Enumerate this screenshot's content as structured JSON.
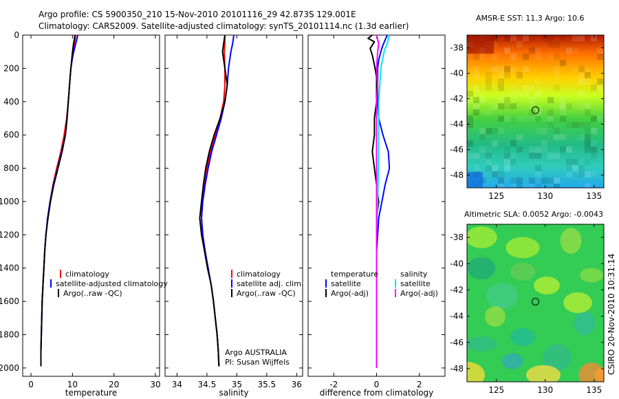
{
  "title": {
    "line1": "Argo profile: CS 5900350_210 15-Nov-2010 20101116_29 42.873S 129.001E",
    "line2": "Climatology: CARS2009. Satellite-adjusted climatology: synTS_20101114.nc (1.3d earlier)"
  },
  "side_label": "CSIRO 20-Nov-2010 10:31:14",
  "colors": {
    "climatology": "#ff0000",
    "satellite": "#0000ff",
    "argo": "#000000",
    "cyan": "#00e5ee",
    "magenta": "#ff00ff"
  },
  "chart_data": [
    {
      "id": "temperature",
      "type": "line",
      "xlabel": "temperature",
      "xlim": [
        -2,
        31
      ],
      "xticks": [
        0,
        10,
        20,
        30
      ],
      "ylim": [
        2050,
        0
      ],
      "yticks": [
        0,
        200,
        400,
        600,
        800,
        1000,
        1200,
        1400,
        1600,
        1800,
        2000
      ],
      "legend": [
        "climatology",
        "satellite-adjusted climatology",
        "Argo(..raw -QC)"
      ],
      "series": [
        {
          "name": "climatology",
          "color": "#ff0000",
          "points": [
            [
              10.8,
              0
            ],
            [
              10.6,
              30
            ],
            [
              10.4,
              60
            ],
            [
              10.2,
              100
            ],
            [
              9.9,
              150
            ],
            [
              9.6,
              200
            ],
            [
              9.3,
              300
            ],
            [
              9.0,
              400
            ],
            [
              8.6,
              500
            ],
            [
              8.0,
              600
            ],
            [
              7.2,
              700
            ],
            [
              6.2,
              800
            ],
            [
              5.3,
              900
            ],
            [
              4.6,
              1000
            ],
            [
              4.0,
              1100
            ],
            [
              3.6,
              1200
            ],
            [
              3.3,
              1300
            ],
            [
              3.1,
              1400
            ],
            [
              2.9,
              1500
            ],
            [
              2.7,
              1600
            ],
            [
              2.6,
              1700
            ],
            [
              2.5,
              1800
            ],
            [
              2.4,
              1900
            ],
            [
              2.4,
              1990
            ]
          ]
        },
        {
          "name": "satellite-adjusted climatology",
          "color": "#0000ff",
          "points": [
            [
              11.3,
              0
            ],
            [
              11.0,
              30
            ],
            [
              10.7,
              60
            ],
            [
              10.3,
              100
            ],
            [
              9.9,
              150
            ],
            [
              9.6,
              200
            ],
            [
              9.3,
              300
            ],
            [
              9.0,
              400
            ],
            [
              8.7,
              500
            ],
            [
              8.3,
              600
            ],
            [
              7.4,
              700
            ],
            [
              6.4,
              800
            ],
            [
              5.4,
              900
            ],
            [
              4.6,
              1000
            ],
            [
              4.0,
              1100
            ],
            [
              3.6,
              1200
            ],
            [
              3.3,
              1300
            ],
            [
              3.1,
              1400
            ],
            [
              2.9,
              1500
            ],
            [
              2.7,
              1600
            ],
            [
              2.6,
              1700
            ],
            [
              2.5,
              1800
            ],
            [
              2.4,
              1900
            ],
            [
              2.4,
              1990
            ]
          ]
        },
        {
          "name": "Argo(..raw -QC)",
          "color": "#000000",
          "points": [
            [
              10.6,
              0
            ],
            [
              10.4,
              30
            ],
            [
              10.2,
              60
            ],
            [
              10.0,
              100
            ],
            [
              9.8,
              150
            ],
            [
              9.6,
              200
            ],
            [
              9.3,
              300
            ],
            [
              9.0,
              400
            ],
            [
              8.7,
              500
            ],
            [
              8.3,
              600
            ],
            [
              7.5,
              700
            ],
            [
              6.5,
              800
            ],
            [
              5.5,
              900
            ],
            [
              4.7,
              1000
            ],
            [
              4.1,
              1100
            ],
            [
              3.6,
              1200
            ],
            [
              3.3,
              1300
            ],
            [
              3.1,
              1400
            ],
            [
              2.9,
              1500
            ],
            [
              2.7,
              1600
            ],
            [
              2.6,
              1700
            ],
            [
              2.5,
              1800
            ],
            [
              2.4,
              1900
            ],
            [
              2.4,
              1990
            ]
          ]
        }
      ]
    },
    {
      "id": "salinity",
      "type": "line",
      "xlabel": "salinity",
      "xlim": [
        33.8,
        36.1
      ],
      "xticks": [
        34,
        34.5,
        35,
        35.5,
        36
      ],
      "ylim": [
        2050,
        0
      ],
      "legend": [
        "climatology",
        "satellite adj. clim.",
        "Argo(..raw -QC)"
      ],
      "annotation": [
        "Argo AUSTRALIA",
        "PI: Susan Wijffels"
      ],
      "series": [
        {
          "name": "climatology",
          "color": "#ff0000",
          "points": [
            [
              34.8,
              0
            ],
            [
              34.8,
              50
            ],
            [
              34.79,
              100
            ],
            [
              34.8,
              200
            ],
            [
              34.8,
              300
            ],
            [
              34.78,
              400
            ],
            [
              34.72,
              500
            ],
            [
              34.64,
              600
            ],
            [
              34.56,
              700
            ],
            [
              34.5,
              800
            ],
            [
              34.46,
              900
            ],
            [
              34.42,
              1000
            ],
            [
              34.41,
              1100
            ],
            [
              34.43,
              1200
            ],
            [
              34.47,
              1300
            ],
            [
              34.52,
              1400
            ],
            [
              34.57,
              1500
            ],
            [
              34.61,
              1600
            ],
            [
              34.64,
              1700
            ],
            [
              34.67,
              1800
            ],
            [
              34.69,
              1900
            ],
            [
              34.7,
              1990
            ]
          ]
        },
        {
          "name": "satellite adj. clim.",
          "color": "#0000ff",
          "points": [
            [
              34.95,
              0
            ],
            [
              34.93,
              50
            ],
            [
              34.9,
              100
            ],
            [
              34.86,
              200
            ],
            [
              34.84,
              300
            ],
            [
              34.8,
              400
            ],
            [
              34.74,
              500
            ],
            [
              34.66,
              600
            ],
            [
              34.58,
              700
            ],
            [
              34.52,
              800
            ],
            [
              34.47,
              900
            ],
            [
              34.43,
              1000
            ],
            [
              34.41,
              1100
            ],
            [
              34.43,
              1200
            ],
            [
              34.47,
              1300
            ],
            [
              34.52,
              1400
            ],
            [
              34.57,
              1500
            ],
            [
              34.61,
              1600
            ],
            [
              34.64,
              1700
            ],
            [
              34.67,
              1800
            ],
            [
              34.69,
              1900
            ],
            [
              34.7,
              1990
            ]
          ]
        },
        {
          "name": "Argo(..raw -QC)",
          "color": "#000000",
          "points": [
            [
              34.8,
              0
            ],
            [
              34.78,
              50
            ],
            [
              34.76,
              100
            ],
            [
              34.8,
              200
            ],
            [
              34.84,
              300
            ],
            [
              34.8,
              400
            ],
            [
              34.72,
              500
            ],
            [
              34.62,
              600
            ],
            [
              34.54,
              700
            ],
            [
              34.48,
              800
            ],
            [
              34.44,
              900
            ],
            [
              34.41,
              1000
            ],
            [
              34.38,
              1100
            ],
            [
              34.41,
              1200
            ],
            [
              34.46,
              1300
            ],
            [
              34.51,
              1400
            ],
            [
              34.57,
              1500
            ],
            [
              34.61,
              1600
            ],
            [
              34.64,
              1700
            ],
            [
              34.67,
              1800
            ],
            [
              34.69,
              1900
            ],
            [
              34.7,
              1990
            ]
          ]
        }
      ]
    },
    {
      "id": "difference",
      "type": "line",
      "xlabel": "difference from climatology",
      "xlim": [
        -3.2,
        3.2
      ],
      "xticks": [
        -2,
        0,
        2
      ],
      "ylim": [
        2050,
        0
      ],
      "legend_headers": [
        "temperature",
        "salinity"
      ],
      "legend": [
        [
          "satellite",
          "Argo(-adj)"
        ],
        [
          "satellite",
          "Argo(-adj)"
        ]
      ],
      "series": [
        {
          "name": "temperature satellite",
          "color": "#0000ff",
          "points": [
            [
              0.5,
              0
            ],
            [
              0.4,
              30
            ],
            [
              0.3,
              60
            ],
            [
              0.2,
              100
            ],
            [
              0.1,
              150
            ],
            [
              0.05,
              200
            ],
            [
              0.05,
              300
            ],
            [
              0.05,
              400
            ],
            [
              0.1,
              500
            ],
            [
              0.3,
              600
            ],
            [
              0.55,
              700
            ],
            [
              0.6,
              800
            ],
            [
              0.4,
              900
            ],
            [
              0.25,
              1000
            ],
            [
              0.1,
              1100
            ],
            [
              0.05,
              1200
            ],
            [
              0.0,
              1300
            ],
            [
              0.0,
              1500
            ],
            [
              0.0,
              2000
            ]
          ]
        },
        {
          "name": "temperature Argo(-adj)",
          "color": "#000000",
          "points": [
            [
              -0.2,
              0
            ],
            [
              -0.4,
              20
            ],
            [
              -0.1,
              40
            ],
            [
              -0.3,
              80
            ],
            [
              -0.2,
              120
            ],
            [
              -0.1,
              180
            ],
            [
              0.0,
              250
            ],
            [
              0.0,
              400
            ],
            [
              -0.1,
              500
            ],
            [
              -0.1,
              600
            ],
            [
              -0.2,
              700
            ],
            [
              -0.1,
              800
            ],
            [
              0.0,
              900
            ],
            [
              0.1,
              1000
            ],
            [
              0.0,
              1100
            ],
            [
              0.0,
              1200
            ],
            [
              0.0,
              1500
            ],
            [
              0.0,
              2000
            ]
          ]
        },
        {
          "name": "salinity satellite",
          "color": "#00e5ee",
          "points": [
            [
              0.6,
              0
            ],
            [
              0.5,
              50
            ],
            [
              0.35,
              100
            ],
            [
              0.2,
              200
            ],
            [
              0.15,
              300
            ],
            [
              0.1,
              400
            ],
            [
              0.1,
              500
            ],
            [
              0.1,
              700
            ],
            [
              0.05,
              1000
            ],
            [
              0.0,
              1200
            ],
            [
              0.0,
              1500
            ],
            [
              0.0,
              2000
            ]
          ]
        },
        {
          "name": "salinity Argo(-adj)",
          "color": "#ff00ff",
          "points": [
            [
              0.0,
              0
            ],
            [
              0.1,
              50
            ],
            [
              0.05,
              100
            ],
            [
              0.0,
              200
            ],
            [
              0.05,
              300
            ],
            [
              0.0,
              400
            ],
            [
              0.0,
              500
            ],
            [
              0.0,
              800
            ],
            [
              0.0,
              1000
            ],
            [
              0.0,
              1200
            ],
            [
              0.0,
              1500
            ],
            [
              0.0,
              2000
            ]
          ]
        }
      ]
    },
    {
      "id": "sst_map",
      "type": "heatmap",
      "title": "AMSR-E SST: 11.3  Argo: 10.6",
      "xticks": [
        125,
        130,
        135
      ],
      "yticks": [
        -38,
        -40,
        -42,
        -44,
        -46,
        -48
      ],
      "xlim": [
        122,
        136
      ],
      "ylim": [
        -49,
        -37
      ],
      "marker": [
        129.0,
        -42.9
      ],
      "gradient": [
        "#a31a00",
        "#ff6a00",
        "#ffcc00",
        "#d6ff1a",
        "#55dd44",
        "#22bb77",
        "#33c9a8",
        "#33ccee"
      ]
    },
    {
      "id": "sla_map",
      "type": "heatmap",
      "title": "Altimetric SLA: 0.0052  Argo: -0.0043",
      "xticks": [
        125,
        130,
        135
      ],
      "yticks": [
        -38,
        -40,
        -42,
        -44,
        -46,
        -48
      ],
      "xlim": [
        122,
        136
      ],
      "ylim": [
        -49,
        -37
      ],
      "marker": [
        129.0,
        -42.9
      ],
      "base_color": "#33cc55"
    }
  ]
}
